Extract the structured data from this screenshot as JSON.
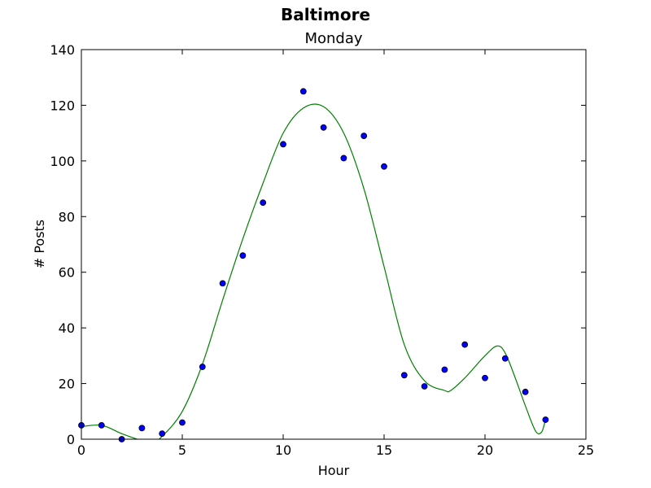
{
  "chart_data": {
    "type": "scatter",
    "title": "Baltimore",
    "subtitle": "Monday",
    "xlabel": "Hour",
    "ylabel": "# Posts",
    "xlim": [
      0,
      25
    ],
    "ylim": [
      0,
      140
    ],
    "xticks": [
      0,
      5,
      10,
      15,
      20,
      25
    ],
    "yticks": [
      0,
      20,
      40,
      60,
      80,
      100,
      120,
      140
    ],
    "grid": false,
    "legend": "none",
    "colors": {
      "points": "#0000ff",
      "point_edge": "#000000",
      "fit": "#008000"
    },
    "series": [
      {
        "type": "scatter",
        "x": [
          0,
          1,
          2,
          3,
          4,
          5,
          6,
          7,
          8,
          9,
          10,
          11,
          12,
          13,
          14,
          15,
          16,
          17,
          18,
          19,
          20,
          21,
          22,
          23
        ],
        "y": [
          5,
          5,
          0,
          4,
          2,
          6,
          26,
          56,
          66,
          85,
          106,
          125,
          112,
          101,
          109,
          98,
          23,
          19,
          25,
          34,
          22,
          29,
          17,
          7
        ]
      },
      {
        "type": "line",
        "x": [
          0,
          1,
          2,
          3,
          3.5,
          4,
          5,
          6,
          7,
          8,
          9,
          10,
          11,
          12,
          13,
          14,
          15,
          16,
          17,
          18,
          18.3,
          19,
          20,
          20.6,
          21,
          21.5,
          22,
          22.5,
          22.8,
          23
        ],
        "y": [
          4.5,
          5,
          2,
          -0.5,
          -1,
          1,
          10,
          27,
          50,
          72,
          92,
          110,
          119,
          119.5,
          110,
          90,
          62,
          34,
          21,
          17.5,
          17.5,
          22,
          30,
          33.5,
          31,
          22,
          12,
          3,
          2.5,
          7
        ]
      }
    ]
  }
}
